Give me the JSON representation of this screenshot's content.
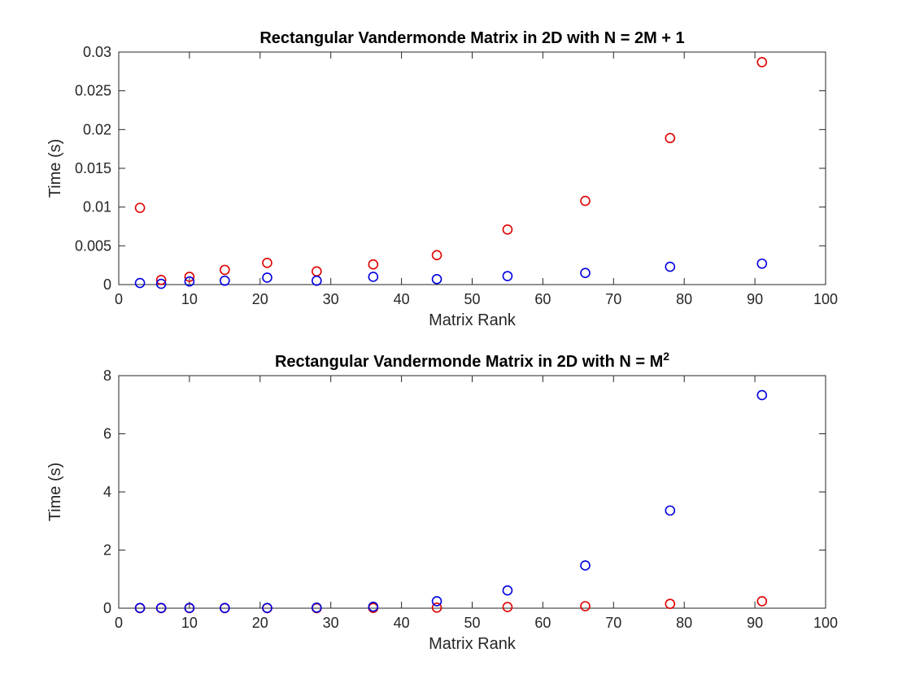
{
  "chart_data": [
    {
      "type": "scatter",
      "title": "Rectangular Vandermonde Matrix in 2D with N = 2M + 1",
      "title_parts": [
        "Rectangular Vandermonde Matrix in 2D with N = 2M + 1"
      ],
      "xlabel": "Matrix Rank",
      "ylabel": "Time (s)",
      "xlim": [
        0,
        100
      ],
      "ylim": [
        0,
        0.03
      ],
      "xticks": [
        "0",
        "10",
        "20",
        "30",
        "40",
        "50",
        "60",
        "70",
        "80",
        "90",
        "100"
      ],
      "yticks": [
        "0",
        "0.005",
        "0.01",
        "0.015",
        "0.02",
        "0.025",
        "0.03"
      ],
      "grid": false,
      "series": [
        {
          "color": "#e00000",
          "x": [
            3,
            6,
            10,
            15,
            21,
            28,
            36,
            45,
            55,
            66,
            78,
            91
          ],
          "y": [
            0.0099,
            0.0006,
            0.001,
            0.0019,
            0.0028,
            0.0017,
            0.0026,
            0.0038,
            0.0071,
            0.0108,
            0.0189,
            0.0287
          ]
        },
        {
          "color": "#0000e0",
          "x": [
            3,
            6,
            10,
            15,
            21,
            28,
            36,
            45,
            55,
            66,
            78,
            91
          ],
          "y": [
            0.0002,
            0.0001,
            0.0004,
            0.0005,
            0.0009,
            0.0005,
            0.001,
            0.0007,
            0.0011,
            0.0015,
            0.0023,
            0.0027
          ]
        }
      ]
    },
    {
      "type": "scatter",
      "title": "Rectangular Vandermonde Matrix in 2D with N = M2",
      "title_parts": [
        "Rectangular Vandermonde Matrix in 2D with N = M",
        "2"
      ],
      "xlabel": "Matrix Rank",
      "ylabel": "Time (s)",
      "xlim": [
        0,
        100
      ],
      "ylim": [
        0,
        8
      ],
      "xticks": [
        "0",
        "10",
        "20",
        "30",
        "40",
        "50",
        "60",
        "70",
        "80",
        "90",
        "100"
      ],
      "yticks": [
        "0",
        "2",
        "4",
        "6",
        "8"
      ],
      "grid": false,
      "series": [
        {
          "color": "#e00000",
          "x": [
            3,
            6,
            10,
            15,
            21,
            28,
            36,
            45,
            55,
            66,
            78,
            91
          ],
          "y": [
            0.001,
            0.001,
            0.002,
            0.002,
            0.003,
            0.003,
            0.01,
            0.02,
            0.04,
            0.07,
            0.15,
            0.24
          ]
        },
        {
          "color": "#0000e0",
          "x": [
            3,
            6,
            10,
            15,
            21,
            28,
            36,
            45,
            55,
            66,
            78,
            91
          ],
          "y": [
            0.01,
            0.01,
            0.01,
            0.01,
            0.01,
            0.02,
            0.05,
            0.24,
            0.61,
            1.47,
            3.36,
            7.33
          ]
        }
      ]
    }
  ]
}
